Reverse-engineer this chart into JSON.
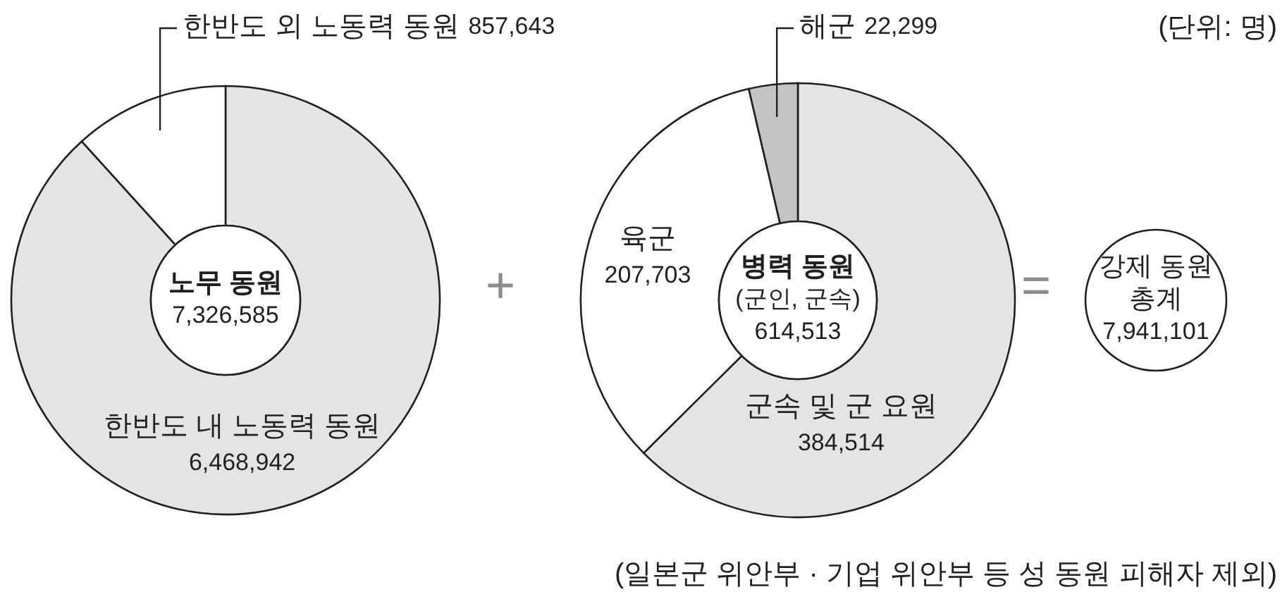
{
  "chart_data": [
    {
      "type": "donut",
      "title": "노무 동원",
      "categories": [
        "한반도 내 노동력 동원",
        "한반도 외 노동력 동원"
      ],
      "values": [
        6468942,
        857643
      ],
      "value_labels": [
        "6,468,942",
        "857,643"
      ],
      "colors": [
        "#e4e4e6",
        "#ffffff"
      ],
      "annotations": [
        "7,326,585"
      ]
    },
    {
      "type": "donut",
      "title": "병력 동원",
      "subtitle": "(군인, 군속)",
      "categories": [
        "군속 및 군 요원",
        "육군",
        "해군"
      ],
      "values": [
        384514,
        207703,
        22299
      ],
      "value_labels": [
        "384,514",
        "207,703",
        "22,299"
      ],
      "colors": [
        "#e4e4e6",
        "#ffffff",
        "#c4c4c6"
      ],
      "annotations": [
        "614,513"
      ]
    },
    {
      "type": "other",
      "title": "강제 동원",
      "subtitle": "총계",
      "annotations": [
        "7,941,101",
        "+",
        "=",
        "(단위: 명)",
        "(일본군 위안부 · 기업 위안부 등 성 동원 피해자 제외)"
      ]
    }
  ]
}
